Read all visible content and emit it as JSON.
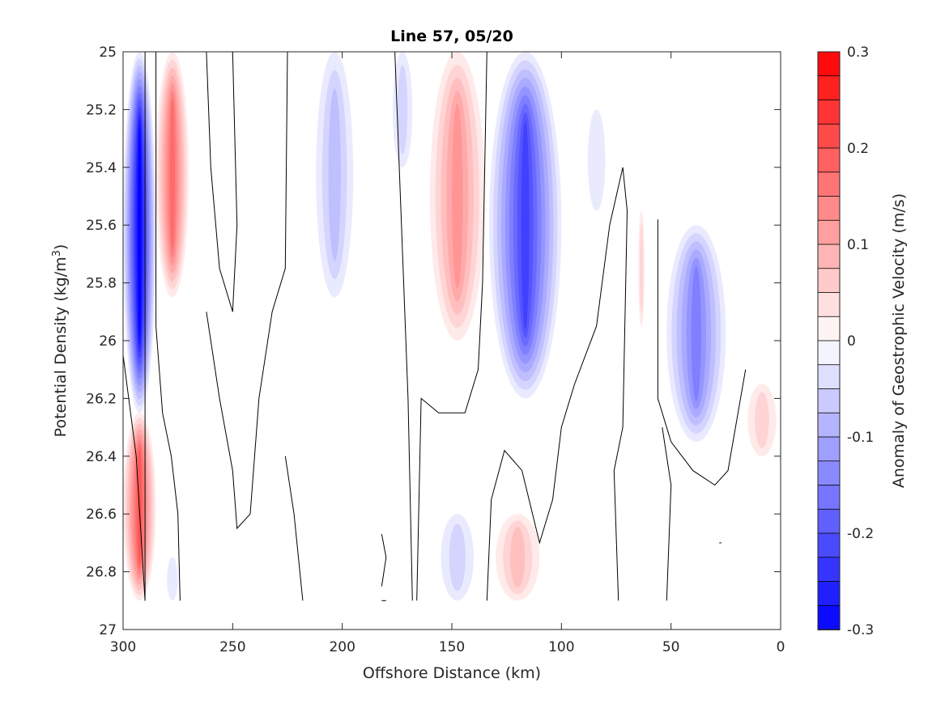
{
  "chart_data": {
    "type": "heatmap",
    "subtype": "filled-contour",
    "title": "Line 57, 05/20",
    "xlabel": "Offshore Distance (km)",
    "ylabel_main": "Potential Density (kg/m",
    "ylabel_sup": "3",
    "ylabel_end": ")",
    "colorbar_label": "Anomaly of Geostrophic Velocity (m/s)",
    "x_direction": "reversed",
    "xlim": [
      300,
      0
    ],
    "ylim": [
      25,
      27
    ],
    "y_direction": "reversed",
    "x_ticks": [
      300,
      250,
      200,
      150,
      100,
      50,
      0
    ],
    "x_tick_labels": [
      "300",
      "250",
      "200",
      "150",
      "100",
      "50",
      "0"
    ],
    "y_ticks": [
      25,
      25.2,
      25.4,
      25.6,
      25.8,
      26,
      26.2,
      26.4,
      26.6,
      26.8,
      27
    ],
    "y_tick_labels": [
      "25",
      "25.2",
      "25.4",
      "25.6",
      "25.8",
      "26",
      "26.2",
      "26.4",
      "26.6",
      "26.8",
      "27"
    ],
    "colorbar": {
      "range": [
        -0.3,
        0.3
      ],
      "levels": 24,
      "colormap": "blue-white-red",
      "negative_color": "#0000ff",
      "positive_color": "#ff0000",
      "ticks": [
        0.3,
        0.2,
        0.1,
        0,
        -0.1,
        -0.2,
        -0.3
      ],
      "tick_labels": [
        "0.3",
        "0.2",
        "0.1",
        "0",
        "-0.1",
        "-0.2",
        "-0.3"
      ]
    },
    "grid": false,
    "features": [
      {
        "sign": "negative",
        "x_range": [
          300,
          285
        ],
        "y_range": [
          25,
          26.25
        ],
        "peak": -0.3
      },
      {
        "sign": "positive",
        "x_range": [
          285,
          270
        ],
        "y_range": [
          25,
          25.85
        ],
        "peak": 0.17
      },
      {
        "sign": "negative",
        "x_range": [
          212,
          195
        ],
        "y_range": [
          25,
          25.85
        ],
        "peak": -0.07
      },
      {
        "sign": "negative",
        "x_range": [
          177,
          168
        ],
        "y_range": [
          25,
          25.4
        ],
        "peak": -0.04
      },
      {
        "sign": "positive",
        "x_range": [
          160,
          135
        ],
        "y_range": [
          25,
          26.0
        ],
        "peak": 0.13
      },
      {
        "sign": "negative",
        "x_range": [
          133,
          100
        ],
        "y_range": [
          25,
          26.2
        ],
        "peak": -0.22
      },
      {
        "sign": "negative",
        "x_range": [
          88,
          80
        ],
        "y_range": [
          25.2,
          25.55
        ],
        "peak": -0.03
      },
      {
        "sign": "positive",
        "x_range": [
          65,
          62
        ],
        "y_range": [
          25.55,
          25.95
        ],
        "peak": 0.04
      },
      {
        "sign": "negative",
        "x_range": [
          52,
          25
        ],
        "y_range": [
          25.6,
          26.35
        ],
        "peak": -0.14
      },
      {
        "sign": "positive",
        "x_range": [
          15,
          2
        ],
        "y_range": [
          26.15,
          26.4
        ],
        "peak": 0.04
      },
      {
        "sign": "positive",
        "x_range": [
          300,
          285
        ],
        "y_range": [
          26.25,
          26.9
        ],
        "peak": 0.19
      },
      {
        "sign": "negative",
        "x_range": [
          280,
          275
        ],
        "y_range": [
          26.75,
          26.9
        ],
        "peak": -0.03
      },
      {
        "sign": "negative",
        "x_range": [
          155,
          140
        ],
        "y_range": [
          26.6,
          26.9
        ],
        "peak": -0.04
      },
      {
        "sign": "positive",
        "x_range": [
          130,
          110
        ],
        "y_range": [
          26.6,
          26.9
        ],
        "peak": 0.07
      }
    ],
    "zero_contour_lines": 14
  }
}
